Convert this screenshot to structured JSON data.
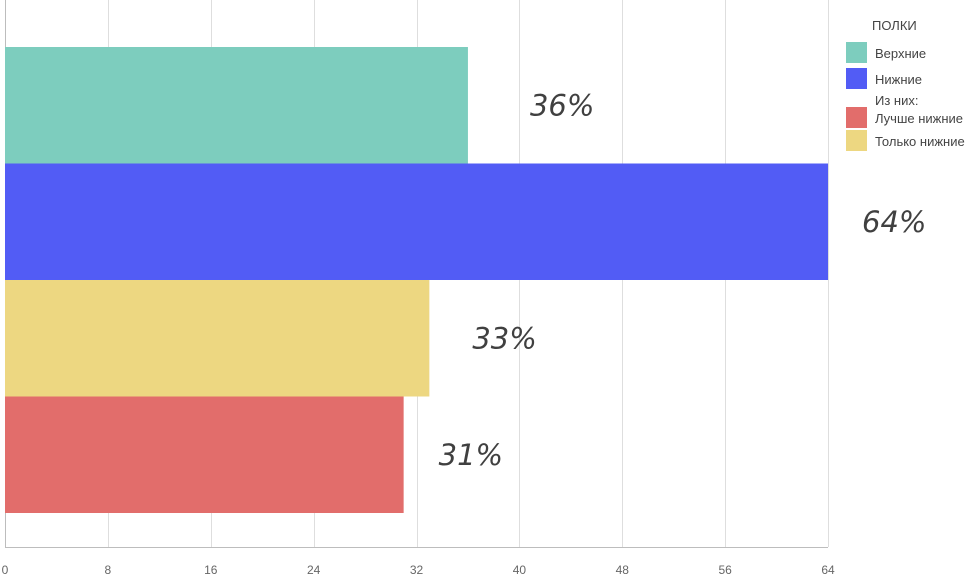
{
  "chart_data": {
    "type": "bar",
    "orientation": "horizontal",
    "bars": [
      {
        "key": "upper",
        "label": "Верхние",
        "value": 36,
        "data_label": "36%",
        "color": "#7dcdbe"
      },
      {
        "key": "lower",
        "label": "Нижние",
        "value": 64,
        "data_label": "64%",
        "color": "#525cf5"
      },
      {
        "key": "only_lower",
        "label": "Только нижние",
        "value": 33,
        "data_label": "33%",
        "color": "#edd781"
      },
      {
        "key": "better_lower",
        "label": "Лучше нижние",
        "value": 31,
        "data_label": "31%",
        "color": "#e26d6b"
      }
    ],
    "xlim": [
      0,
      64
    ],
    "x_ticks": [
      0,
      8,
      16,
      24,
      32,
      40,
      48,
      56,
      64
    ],
    "grid": true,
    "legend": {
      "title": "ПОЛКИ",
      "placement": "top-right",
      "items": [
        {
          "type": "swatch",
          "label": "Верхние",
          "color": "#7dcdbe"
        },
        {
          "type": "swatch",
          "label": "Нижние",
          "color": "#525cf5"
        },
        {
          "type": "text",
          "label": "Из них:"
        },
        {
          "type": "swatch",
          "label": "Лучше нижние",
          "color": "#e26d6b"
        },
        {
          "type": "swatch",
          "label": "Только нижние",
          "color": "#edd781"
        }
      ]
    }
  }
}
